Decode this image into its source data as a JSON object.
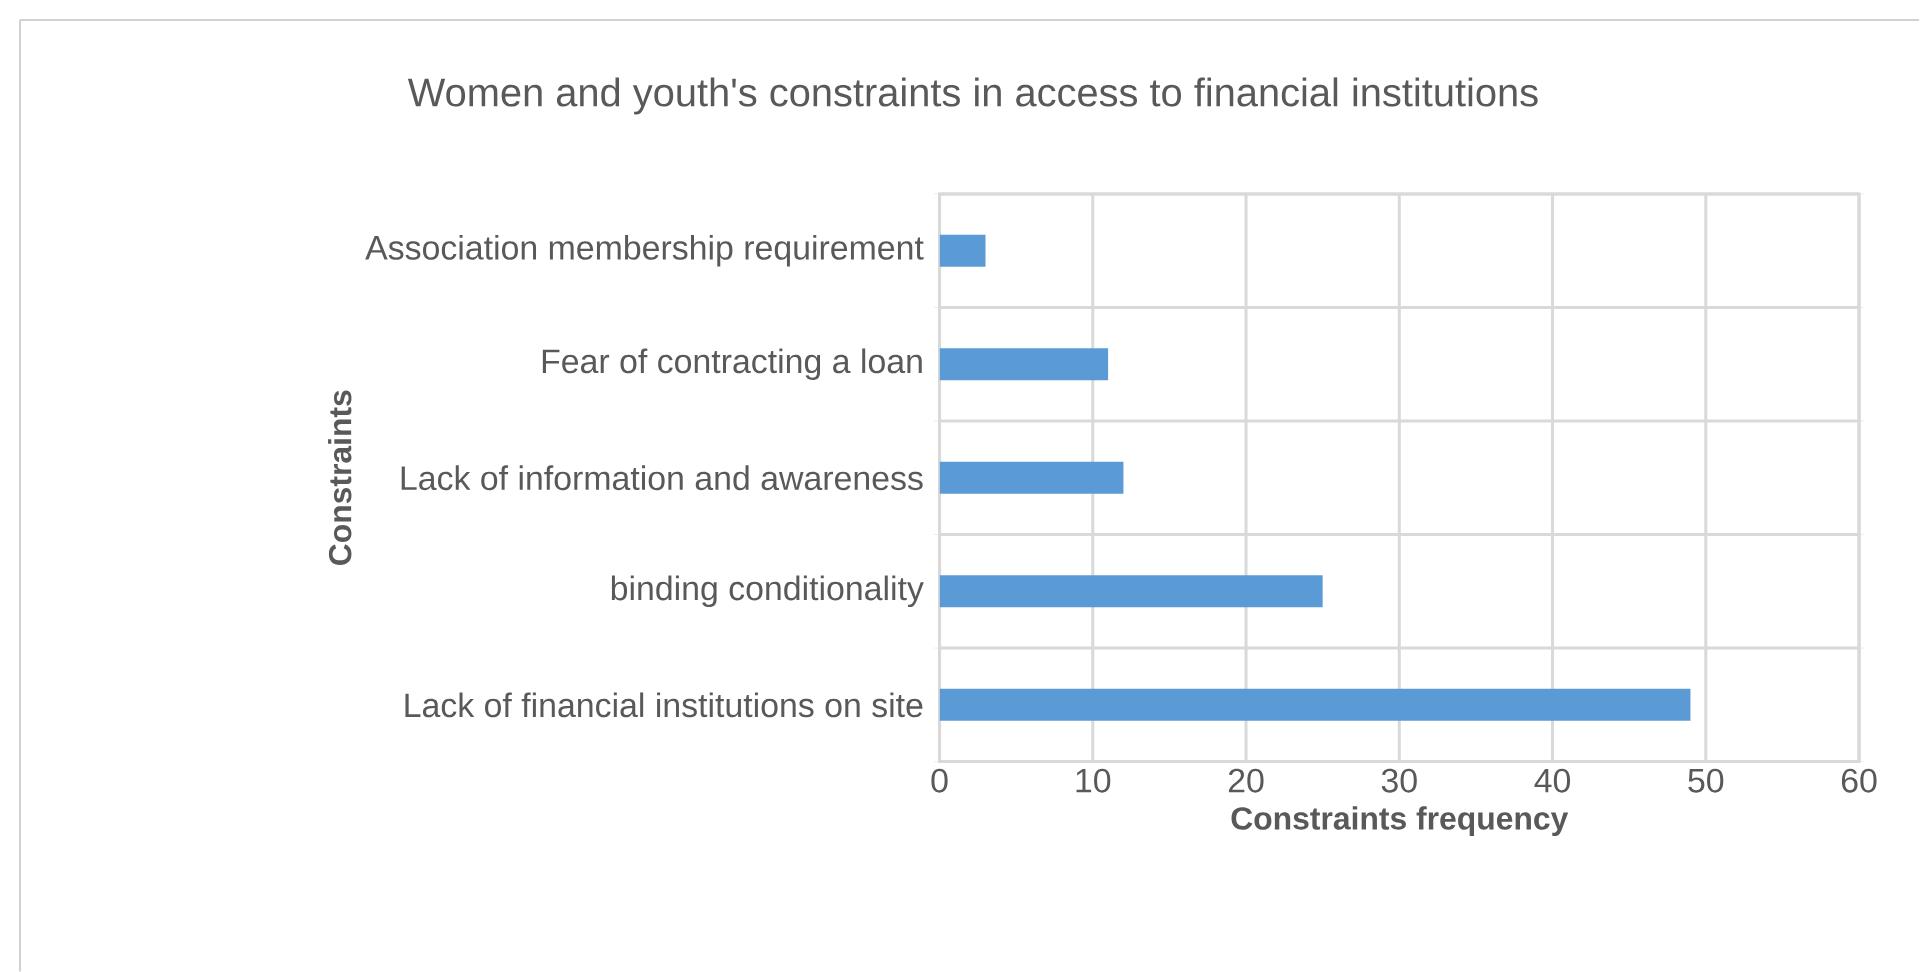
{
  "chart_data": {
    "type": "bar",
    "orientation": "horizontal",
    "title": "Women and youth's constraints in access to financial institutions",
    "xlabel": "Constraints frequency",
    "ylabel": "Constraints",
    "categories": [
      "Association membership requirement",
      "Fear of contracting a loan",
      "Lack of information and awareness",
      "binding conditionality",
      "Lack of financial institutions on site"
    ],
    "values": [
      3,
      11,
      12,
      25,
      49
    ],
    "color": "#5b9bd5",
    "xlim": [
      0,
      60
    ],
    "xticks": [
      0,
      10,
      20,
      30,
      40,
      50,
      60
    ],
    "grid": true
  }
}
